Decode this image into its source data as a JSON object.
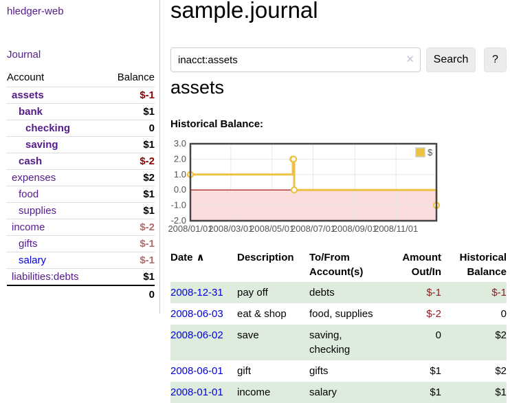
{
  "app": {
    "brand": "hledger-web"
  },
  "sidebar": {
    "journal_link": "Journal",
    "accounts": {
      "header_account": "Account",
      "header_balance": "Balance",
      "rows": [
        {
          "name": "assets",
          "balance": "$-1",
          "depth": 0,
          "bold": true,
          "balance_class": "neg"
        },
        {
          "name": "bank",
          "balance": "$1",
          "depth": 1,
          "bold": true,
          "balance_class": ""
        },
        {
          "name": "checking",
          "balance": "0",
          "depth": 2,
          "bold": true,
          "balance_class": ""
        },
        {
          "name": "saving",
          "balance": "$1",
          "depth": 2,
          "bold": true,
          "balance_class": ""
        },
        {
          "name": "cash",
          "balance": "$-2",
          "depth": 1,
          "bold": true,
          "balance_class": "neg"
        },
        {
          "name": "expenses",
          "balance": "$2",
          "depth": 0,
          "bold": false,
          "balance_class": ""
        },
        {
          "name": "food",
          "balance": "$1",
          "depth": 1,
          "bold": false,
          "balance_class": ""
        },
        {
          "name": "supplies",
          "balance": "$1",
          "depth": 1,
          "bold": false,
          "balance_class": ""
        },
        {
          "name": "income",
          "balance": "$-2",
          "depth": 0,
          "bold": false,
          "balance_class": "negmuted"
        },
        {
          "name": "gifts",
          "balance": "$-1",
          "depth": 1,
          "bold": false,
          "balance_class": "negmuted"
        },
        {
          "name": "salary",
          "balance": "$-1",
          "depth": 1,
          "bold": false,
          "balance_class": "negmuted",
          "blue": true
        },
        {
          "name": "liabilities:debts",
          "balance": "$1",
          "depth": 0,
          "bold": false,
          "balance_class": ""
        }
      ],
      "total": "0"
    }
  },
  "main": {
    "title": "sample.journal",
    "search": {
      "value": "inacct:assets",
      "clear_icon": "✕",
      "search_button": "Search",
      "help_button": "?"
    },
    "account_heading": "assets",
    "chart_title": "Historical Balance:"
  },
  "chart_data": {
    "type": "line",
    "step": true,
    "title": "Historical Balance:",
    "series": [
      {
        "name": "$",
        "color": "#edc240",
        "points": [
          [
            "2008-01-01",
            1
          ],
          [
            "2008-06-01",
            2
          ],
          [
            "2008-06-02",
            2
          ],
          [
            "2008-06-03",
            0
          ],
          [
            "2008-12-31",
            -1
          ]
        ]
      }
    ],
    "xrange": [
      "2008-01-01",
      "2008-12-31"
    ],
    "ylim": [
      -2,
      3
    ],
    "yticks": [
      {
        "label": "3.0",
        "value": 3
      },
      {
        "label": "2.0",
        "value": 2
      },
      {
        "label": "1.0",
        "value": 1
      },
      {
        "label": "0.0",
        "value": 0
      },
      {
        "label": "-1.0",
        "value": -1
      },
      {
        "label": "-2.0",
        "value": -2
      }
    ],
    "xticks": [
      {
        "label": "2008/01/01",
        "date": "2008-01-01"
      },
      {
        "label": "2008/03/01",
        "date": "2008-03-01"
      },
      {
        "label": "2008/05/01",
        "date": "2008-05-01"
      },
      {
        "label": "2008/07/01",
        "date": "2008-07-01"
      },
      {
        "label": "2008/09/01",
        "date": "2008-09-01"
      },
      {
        "label": "2008/11/01",
        "date": "2008-11-01"
      }
    ],
    "grid": true,
    "legend_position": "top-right",
    "negative_region_shaded": true
  },
  "register": {
    "headers": {
      "date": "Date",
      "sort_indicator": "∧",
      "description": "Description",
      "accounts": "To/From Account(s)",
      "amount": "Amount Out/In",
      "balance": "Historical Balance"
    },
    "rows": [
      {
        "date": "2008-12-31",
        "description": "pay off",
        "accounts": "debts",
        "amount": "$-1",
        "balance": "$-1",
        "amount_neg": true,
        "balance_neg": true,
        "shaded": true
      },
      {
        "date": "2008-06-03",
        "description": "eat & shop",
        "accounts": "food, supplies",
        "amount": "$-2",
        "balance": "0",
        "amount_neg": true,
        "balance_neg": false,
        "shaded": false
      },
      {
        "date": "2008-06-02",
        "description": "save",
        "accounts": "saving, checking",
        "amount": "0",
        "balance": "$2",
        "amount_neg": false,
        "balance_neg": false,
        "shaded": true
      },
      {
        "date": "2008-06-01",
        "description": "gift",
        "accounts": "gifts",
        "amount": "$1",
        "balance": "$2",
        "amount_neg": false,
        "balance_neg": false,
        "shaded": false
      },
      {
        "date": "2008-01-01",
        "description": "income",
        "accounts": "salary",
        "amount": "$1",
        "balance": "$1",
        "amount_neg": false,
        "balance_neg": false,
        "shaded": true
      }
    ]
  },
  "colors": {
    "link_purple": "#551a8b",
    "link_blue": "#0000dd",
    "negative_red": "#8b0000",
    "negative_muted": "#b36b6b",
    "table_negative": "#8b1c1c",
    "row_green": "#deecde",
    "series_gold": "#edc240",
    "negative_region_pink": "#fadcdc",
    "zero_line_red": "#a40000"
  }
}
